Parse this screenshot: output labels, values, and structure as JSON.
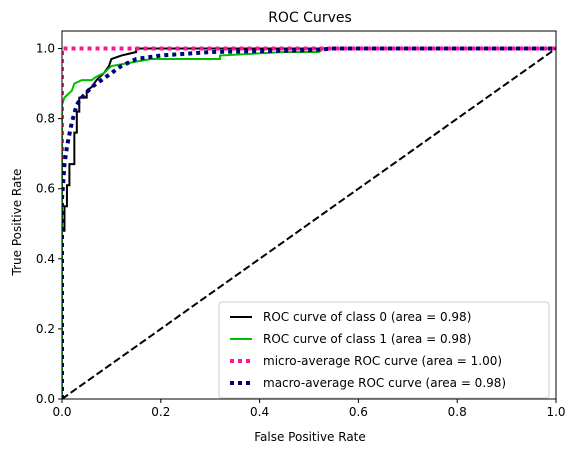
{
  "chart_data": {
    "type": "line",
    "title": "ROC Curves",
    "xlabel": "False Positive Rate",
    "ylabel": "True Positive Rate",
    "xlim": [
      0,
      1
    ],
    "ylim": [
      0,
      1.05
    ],
    "xticks": [
      "0.0",
      "0.2",
      "0.4",
      "0.6",
      "0.8",
      "1.0"
    ],
    "yticks": [
      "0.0",
      "0.2",
      "0.4",
      "0.6",
      "0.8",
      "1.0"
    ],
    "grid": false,
    "legend_position": "lower-right",
    "series": [
      {
        "name": "ROC curve of class 0 (area = 0.98)",
        "color": "#000000",
        "style": "solid",
        "points": [
          [
            0,
            0
          ],
          [
            0,
            0.48
          ],
          [
            0.005,
            0.48
          ],
          [
            0.005,
            0.55
          ],
          [
            0.01,
            0.55
          ],
          [
            0.01,
            0.61
          ],
          [
            0.015,
            0.61
          ],
          [
            0.015,
            0.67
          ],
          [
            0.025,
            0.67
          ],
          [
            0.025,
            0.76
          ],
          [
            0.03,
            0.76
          ],
          [
            0.03,
            0.82
          ],
          [
            0.035,
            0.82
          ],
          [
            0.035,
            0.86
          ],
          [
            0.05,
            0.86
          ],
          [
            0.05,
            0.88
          ],
          [
            0.06,
            0.89
          ],
          [
            0.07,
            0.91
          ],
          [
            0.085,
            0.93
          ],
          [
            0.095,
            0.95
          ],
          [
            0.1,
            0.97
          ],
          [
            0.12,
            0.98
          ],
          [
            0.15,
            0.99
          ],
          [
            0.15,
            1.0
          ],
          [
            1,
            1.0
          ]
        ]
      },
      {
        "name": "ROC curve of class 1 (area = 0.98)",
        "color": "#00bf00",
        "style": "solid",
        "points": [
          [
            0,
            0
          ],
          [
            0,
            0.84
          ],
          [
            0.005,
            0.86
          ],
          [
            0.02,
            0.88
          ],
          [
            0.025,
            0.9
          ],
          [
            0.04,
            0.91
          ],
          [
            0.06,
            0.91
          ],
          [
            0.07,
            0.92
          ],
          [
            0.085,
            0.93
          ],
          [
            0.1,
            0.95
          ],
          [
            0.14,
            0.96
          ],
          [
            0.18,
            0.97
          ],
          [
            0.32,
            0.97
          ],
          [
            0.32,
            0.98
          ],
          [
            0.45,
            0.99
          ],
          [
            0.52,
            0.99
          ],
          [
            0.53,
            1.0
          ],
          [
            1,
            1.0
          ]
        ]
      },
      {
        "name": "micro-average ROC curve (area = 1.00)",
        "color": "#ff1493",
        "style": "dotted",
        "points": [
          [
            0,
            0
          ],
          [
            0,
            1.0
          ],
          [
            1,
            1.0
          ]
        ]
      },
      {
        "name": "macro-average ROC curve (area = 0.98)",
        "color": "#000080",
        "style": "dotted",
        "points": [
          [
            0,
            0
          ],
          [
            0,
            0.57
          ],
          [
            0.005,
            0.67
          ],
          [
            0.01,
            0.72
          ],
          [
            0.02,
            0.79
          ],
          [
            0.03,
            0.84
          ],
          [
            0.04,
            0.86
          ],
          [
            0.06,
            0.89
          ],
          [
            0.08,
            0.91
          ],
          [
            0.1,
            0.93
          ],
          [
            0.12,
            0.95
          ],
          [
            0.15,
            0.97
          ],
          [
            0.2,
            0.98
          ],
          [
            0.3,
            0.99
          ],
          [
            0.5,
            0.995
          ],
          [
            0.55,
            1.0
          ],
          [
            1,
            1.0
          ]
        ]
      },
      {
        "name": "",
        "color": "#000000",
        "style": "dashed",
        "points": [
          [
            0,
            0
          ],
          [
            1,
            1
          ]
        ]
      }
    ]
  }
}
